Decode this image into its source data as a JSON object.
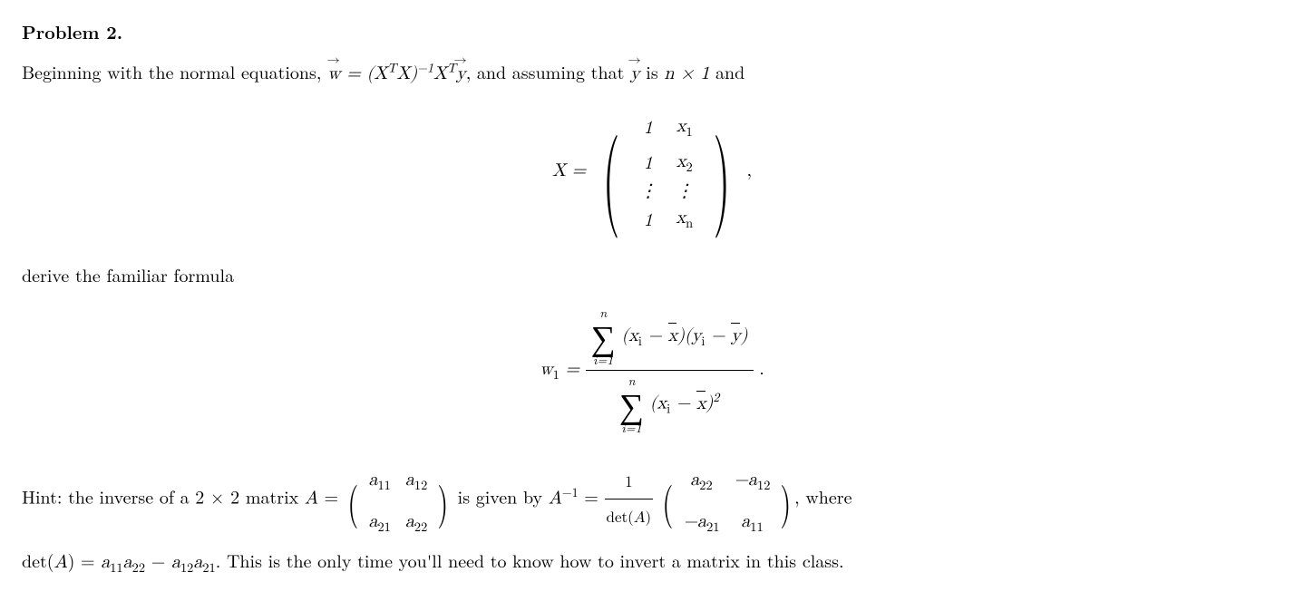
{
  "title": "Problem 2.",
  "intro_a": "Beginning with the normal equations, ",
  "intro_b": ", and assuming that ",
  "intro_c": " is ",
  "intro_d": " and",
  "eq_w": "w",
  "eq_eq": " = ",
  "eq_XtXinv": "(X",
  "eq_T": "T",
  "eq_Xclose": "X)",
  "eq_neg1": "−1",
  "eq_X": "X",
  "eq_y": "y",
  "dim_n": "n × 1",
  "X_label": "X = ",
  "matrix_X": {
    "rows": [
      [
        "1",
        "x",
        "1"
      ],
      [
        "1",
        "x",
        "2"
      ],
      [
        "⋮",
        "⋮",
        ""
      ],
      [
        "1",
        "x",
        "n"
      ]
    ]
  },
  "comma": ",",
  "derive": "derive the familiar formula",
  "w1": "w",
  "w1_sub": "1",
  "eq": " = ",
  "frac": {
    "num_sup": "n",
    "num_sub": "i=1",
    "num_body_a": "(x",
    "num_body_i": "i",
    "num_body_minus": " − ",
    "num_body_xbar": "x",
    "num_body_close": ")(y",
    "num_body_ybar": "y",
    "num_body_close2": ")",
    "den_sup": "n",
    "den_sub": "i=1",
    "den_body_a": "(x",
    "den_body_close": ")",
    "den_sq": "2"
  },
  "period": ".",
  "hint_a": "Hint:  the inverse of a ",
  "hint_2x2": "2 × 2",
  "hint_b": " matrix ",
  "hint_A": "A",
  "hint_eq": " = ",
  "matrix_A": {
    "a11": "a",
    "a11s": "11",
    "a12": "a",
    "a12s": "12",
    "a21": "a",
    "a21s": "21",
    "a22": "a",
    "a22s": "22"
  },
  "hint_c": " is given by ",
  "Ainv": "A",
  "Ainv_sup": "−1",
  "hint_eq2": " = ",
  "one": "1",
  "detA": "det(A)",
  "matrix_Ainv": {
    "a22": "a",
    "a22s": "22",
    "ma12": "−a",
    "ma12s": "12",
    "ma21": "−a",
    "ma21s": "21",
    "a11": "a",
    "a11s": "11"
  },
  "hint_d": ", where",
  "hint_e_a": "det(",
  "hint_e_A": "A",
  "hint_e_b": ") = ",
  "hint_e_c": " − ",
  "hint_f": ". This is the only time you'll need to know how to invert a matrix in this class."
}
